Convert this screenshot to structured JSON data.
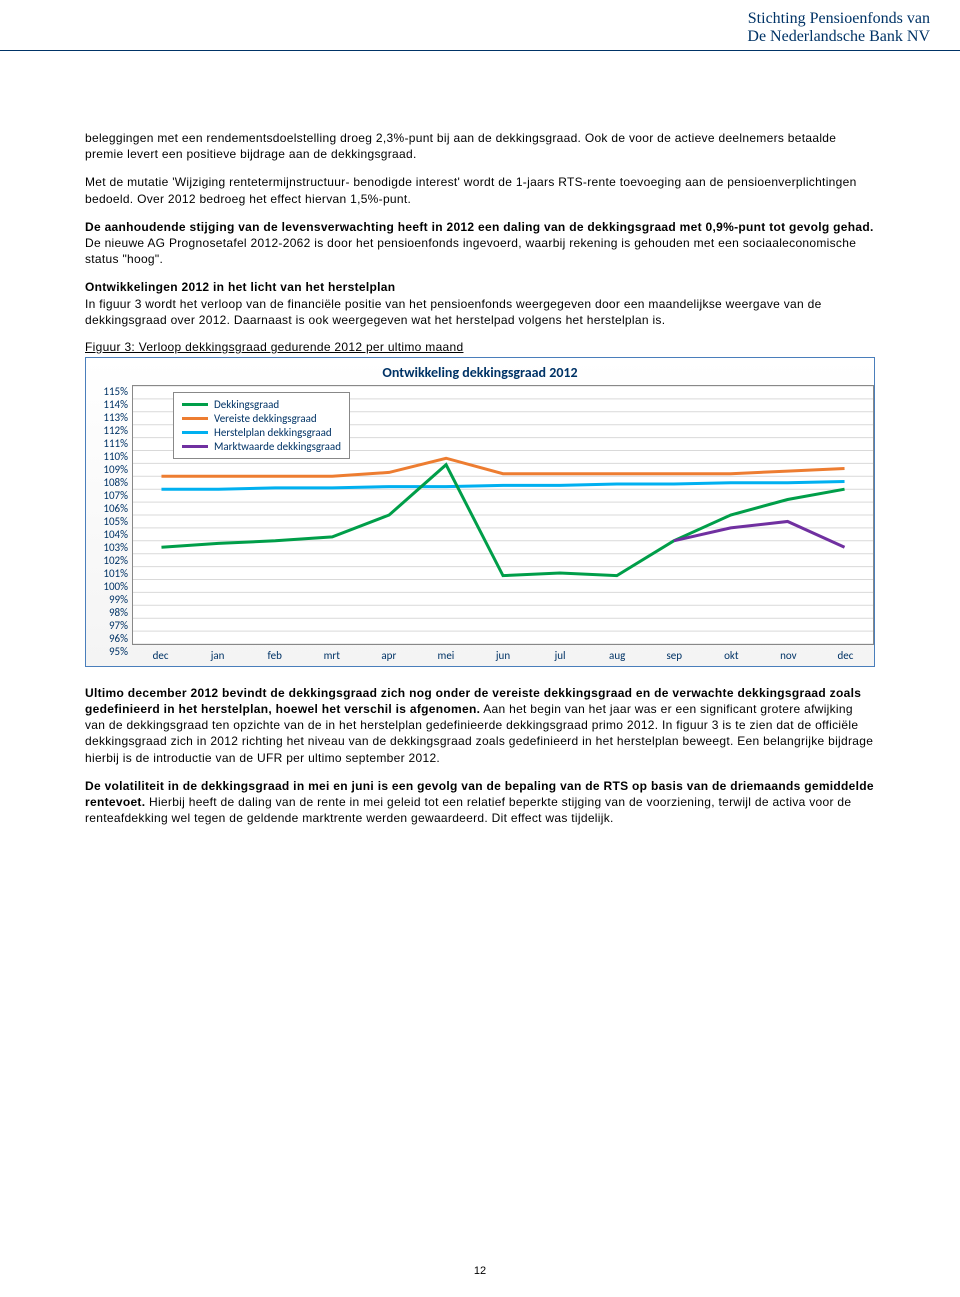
{
  "brand": {
    "line1": "Stichting Pensioenfonds van",
    "line2": "De Nederlandsche Bank NV"
  },
  "para1": "beleggingen met een rendementsdoelstelling droeg 2,3%-punt bij aan de dekkingsgraad. Ook de voor de actieve deelnemers betaalde premie levert een positieve bijdrage aan de dekkingsgraad.",
  "para2": "Met de mutatie 'Wijziging rentetermijnstructuur- benodigde interest' wordt de 1-jaars RTS-rente toevoeging aan de pensioenverplichtingen bedoeld. Over 2012 bedroeg het effect hiervan 1,5%-punt.",
  "para3_bold": "De aanhoudende stijging van de levensverwachting heeft in 2012 een daling van de dekkingsgraad met 0,9%-punt tot gevolg gehad.",
  "para3_rest": " De nieuwe AG Prognosetafel 2012-2062 is door het pensioenfonds ingevoerd, waarbij rekening is gehouden met een sociaaleconomische status \"hoog\".",
  "heading4": "Ontwikkelingen 2012 in het licht van het herstelplan",
  "para4": "In figuur 3 wordt het verloop van de financiële positie van het pensioenfonds weergegeven door een maandelijkse weergave van de dekkingsgraad over 2012. Daarnaast is ook weergegeven wat het herstelpad volgens het herstelplan is.",
  "fig_caption": "Figuur 3: Verloop dekkingsgraad gedurende 2012 per ultimo maand",
  "chart": {
    "title": "Ontwikkeling dekkingsgraad 2012",
    "ymin": 95,
    "ymax": 115,
    "yticks": [
      "115%",
      "114%",
      "113%",
      "112%",
      "111%",
      "110%",
      "109%",
      "108%",
      "107%",
      "106%",
      "105%",
      "104%",
      "103%",
      "102%",
      "101%",
      "100%",
      "99%",
      "98%",
      "97%",
      "96%",
      "95%"
    ],
    "xlabels": [
      "dec",
      "jan",
      "feb",
      "mrt",
      "apr",
      "mei",
      "jun",
      "jul",
      "aug",
      "sep",
      "okt",
      "nov",
      "dec"
    ],
    "legend": [
      {
        "label": "Dekkingsgraad",
        "color": "#009e49"
      },
      {
        "label": "Vereiste dekkingsgraad",
        "color": "#ed7d31"
      },
      {
        "label": "Herstelplan dekkingsgraad",
        "color": "#00b0f0"
      },
      {
        "label": "Marktwaarde dekkingsgraad",
        "color": "#7030a0"
      }
    ],
    "colors": {
      "grid": "#d9d9d9",
      "border": "#888888"
    },
    "series": {
      "dekkingsgraad": [
        102.5,
        102.8,
        103.0,
        103.3,
        105.0,
        108.9,
        100.3,
        100.5,
        100.3,
        103.0,
        105.0,
        106.2,
        107.0
      ],
      "vereiste_dekkingsgraad": [
        108.0,
        108.0,
        108.0,
        108.0,
        108.3,
        109.4,
        108.2,
        108.2,
        108.2,
        108.2,
        108.2,
        108.4,
        108.6
      ],
      "herstelplan_dekkingsgraad": [
        107.0,
        107.0,
        107.1,
        107.1,
        107.2,
        107.2,
        107.3,
        107.3,
        107.4,
        107.4,
        107.5,
        107.5,
        107.6
      ],
      "marktwaarde_dekkingsgraad": [
        null,
        null,
        null,
        null,
        null,
        null,
        null,
        null,
        null,
        103.0,
        104.0,
        104.5,
        102.5
      ]
    }
  },
  "para5_bold": "Ultimo december 2012 bevindt de dekkingsgraad zich nog onder de vereiste dekkingsgraad en de verwachte dekkingsgraad zoals gedefinieerd in het herstelplan, hoewel het verschil is afgenomen.",
  "para5_rest": " Aan het begin van het jaar was er een significant grotere afwijking van de dekkingsgraad ten opzichte van de in het herstelplan gedefinieerde dekkingsgraad primo 2012. In figuur 3 is te zien dat de officiële dekkingsgraad zich in 2012 richting het niveau van de dekkingsgraad zoals gedefinieerd in het herstelplan beweegt. Een belangrijke bijdrage hierbij is de introductie van de UFR per ultimo september 2012.",
  "para6_bold": "De volatiliteit in de dekkingsgraad in mei en juni is een gevolg van de bepaling van de RTS op basis van de driemaands gemiddelde rentevoet.",
  "para6_rest": " Hierbij heeft de daling van de rente in mei geleid tot een relatief beperkte stijging van de voorziening, terwijl de activa voor de renteafdekking wel tegen de geldende marktrente werden gewaardeerd. Dit effect was tijdelijk.",
  "page_number": "12"
}
